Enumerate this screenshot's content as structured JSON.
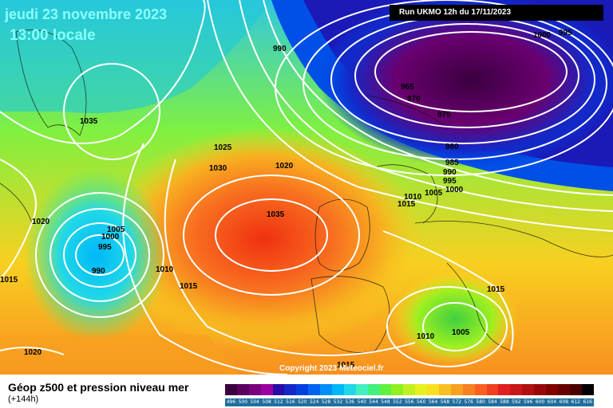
{
  "header": {
    "date": "jeudi 23 novembre 2023",
    "time": "13:00 locale"
  },
  "run": "Run UKMO 12h du 17/11/2023",
  "copyright": "Copyright 2023 Meteociel.fr",
  "footer": {
    "title": "Géop z500 et pression niveau mer",
    "subtitle": "(+144h)"
  },
  "scale": {
    "values": [
      "496",
      "500",
      "504",
      "508",
      "512",
      "516",
      "520",
      "524",
      "528",
      "532",
      "536",
      "540",
      "544",
      "548",
      "552",
      "556",
      "560",
      "564",
      "568",
      "572",
      "576",
      "580",
      "584",
      "588",
      "592",
      "596",
      "600",
      "604",
      "608",
      "612",
      "616"
    ],
    "colors": [
      "#3b0040",
      "#5a005f",
      "#7a007d",
      "#9a00a0",
      "#2a0aa8",
      "#1428c8",
      "#0040e0",
      "#0064f0",
      "#0090f8",
      "#00b8f8",
      "#20d8e8",
      "#40f0c0",
      "#40f080",
      "#60f040",
      "#90f020",
      "#c0f020",
      "#e8f020",
      "#f8e020",
      "#f8c020",
      "#f8a020",
      "#f88020",
      "#f86020",
      "#f04020",
      "#e02020",
      "#c81818",
      "#b01010",
      "#980808",
      "#800000",
      "#680000",
      "#4a0000",
      "#000000"
    ]
  },
  "isobar_labels": [
    "1000",
    "995",
    "990",
    "965",
    "970",
    "975",
    "980",
    "985",
    "990",
    "995",
    "1000",
    "1005",
    "1010",
    "1015",
    "1035",
    "1025",
    "1030",
    "1020",
    "1035",
    "1020",
    "1005",
    "1000",
    "995",
    "990",
    "1010",
    "1015",
    "1015",
    "1010",
    "1005",
    "1020",
    "1015",
    "1015"
  ]
}
